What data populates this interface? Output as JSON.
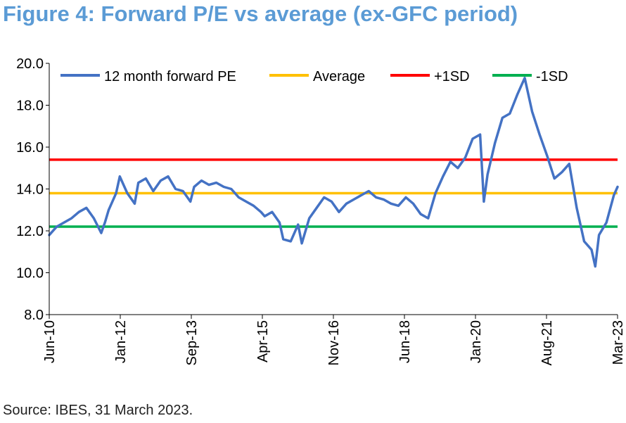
{
  "header": {
    "title": "Figure 4: Forward P/E vs average (ex-GFC period)"
  },
  "footer": {
    "source": "Source: IBES, 31 March 2023."
  },
  "colors": {
    "title": "#5b9bd5",
    "pe": "#4472c4",
    "average": "#ffc000",
    "plus_sd": "#ff0000",
    "minus_sd": "#00b050"
  },
  "chart_data": {
    "type": "line",
    "title": "",
    "xlabel": "",
    "ylabel": "",
    "ylim": [
      8.0,
      20.0
    ],
    "yticks": [
      "8.0",
      "10.0",
      "12.0",
      "14.0",
      "16.0",
      "18.0",
      "20.0"
    ],
    "xticks": [
      "Jun-10",
      "Jan-12",
      "Sep-13",
      "Apr-15",
      "Nov-16",
      "Jun-18",
      "Jan-20",
      "Aug-21",
      "Mar-23"
    ],
    "xlim": [
      "2010-06",
      "2023-03"
    ],
    "grid": false,
    "legend_position": "top",
    "series": [
      {
        "name": "12 month forward PE",
        "x": [
          "2010-06",
          "2010-08",
          "2010-10",
          "2010-12",
          "2011-02",
          "2011-04",
          "2011-06",
          "2011-08",
          "2011-09",
          "2011-10",
          "2011-12",
          "2012-01",
          "2012-03",
          "2012-05",
          "2012-06",
          "2012-08",
          "2012-10",
          "2012-12",
          "2013-02",
          "2013-04",
          "2013-06",
          "2013-08",
          "2013-09",
          "2013-11",
          "2014-01",
          "2014-03",
          "2014-05",
          "2014-07",
          "2014-09",
          "2014-11",
          "2015-01",
          "2015-03",
          "2015-04",
          "2015-06",
          "2015-08",
          "2015-09",
          "2015-11",
          "2016-01",
          "2016-02",
          "2016-04",
          "2016-06",
          "2016-08",
          "2016-10",
          "2016-12",
          "2017-02",
          "2017-04",
          "2017-06",
          "2017-08",
          "2017-10",
          "2017-12",
          "2018-02",
          "2018-04",
          "2018-06",
          "2018-08",
          "2018-10",
          "2018-12",
          "2019-02",
          "2019-04",
          "2019-06",
          "2019-08",
          "2019-10",
          "2019-12",
          "2020-02",
          "2020-03",
          "2020-04",
          "2020-06",
          "2020-08",
          "2020-10",
          "2020-12",
          "2021-02",
          "2021-04",
          "2021-06",
          "2021-08",
          "2021-10",
          "2021-12",
          "2022-02",
          "2022-04",
          "2022-06",
          "2022-08",
          "2022-09",
          "2022-10",
          "2022-12",
          "2023-02",
          "2023-03"
        ],
        "values": [
          11.8,
          12.2,
          12.4,
          12.6,
          12.9,
          13.1,
          12.6,
          11.9,
          12.4,
          13.0,
          13.8,
          14.6,
          13.8,
          13.3,
          14.3,
          14.5,
          13.9,
          14.4,
          14.6,
          14.0,
          13.9,
          13.4,
          14.1,
          14.4,
          14.2,
          14.3,
          14.1,
          14.0,
          13.6,
          13.4,
          13.2,
          12.9,
          12.7,
          12.9,
          12.4,
          11.6,
          11.5,
          12.3,
          11.4,
          12.6,
          13.1,
          13.6,
          13.4,
          12.9,
          13.3,
          13.5,
          13.7,
          13.9,
          13.6,
          13.5,
          13.3,
          13.2,
          13.6,
          13.3,
          12.8,
          12.6,
          13.8,
          14.6,
          15.3,
          15.0,
          15.5,
          16.4,
          16.6,
          13.4,
          14.7,
          16.2,
          17.4,
          17.6,
          18.5,
          19.3,
          17.7,
          16.6,
          15.6,
          14.5,
          14.8,
          15.2,
          13.1,
          11.5,
          11.1,
          10.3,
          11.8,
          12.4,
          13.7,
          14.1
        ]
      },
      {
        "name": "Average",
        "value": 13.8
      },
      {
        "name": "+1SD",
        "value": 15.4
      },
      {
        "name": "-1SD",
        "value": 12.2
      }
    ]
  }
}
